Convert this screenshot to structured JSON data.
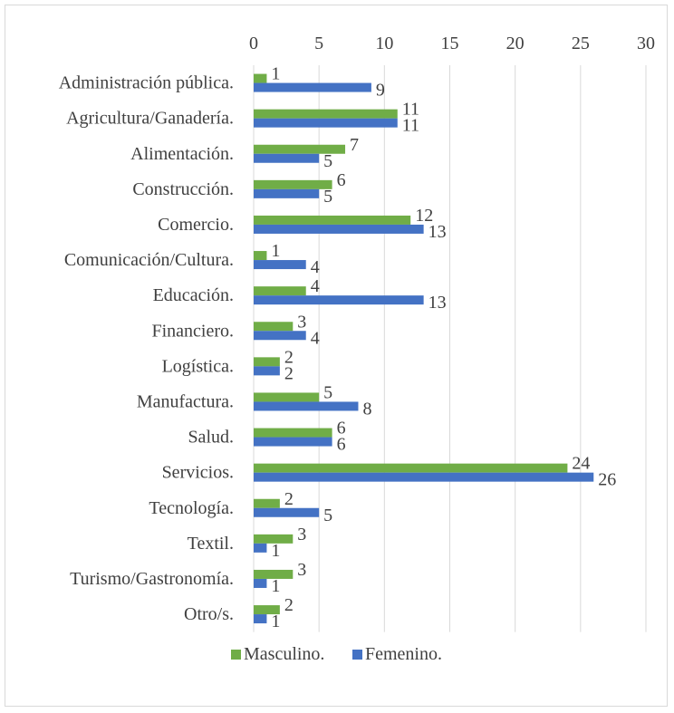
{
  "chart_data": {
    "type": "bar",
    "orientation": "horizontal",
    "categories": [
      "Administración pública.",
      "Agricultura/Ganadería.",
      "Alimentación.",
      "Construcción.",
      "Comercio.",
      "Comunicación/Cultura.",
      "Educación.",
      "Financiero.",
      "Logística.",
      "Manufactura.",
      "Salud.",
      "Servicios.",
      "Tecnología.",
      "Textil.",
      "Turismo/Gastronomía.",
      "Otro/s."
    ],
    "series": [
      {
        "name": "Masculino.",
        "color": "#70ad47",
        "values": [
          1,
          11,
          7,
          6,
          12,
          1,
          4,
          3,
          2,
          5,
          6,
          24,
          2,
          3,
          3,
          2
        ]
      },
      {
        "name": "Femenino.",
        "color": "#4472c4",
        "values": [
          9,
          11,
          5,
          5,
          13,
          4,
          13,
          4,
          2,
          8,
          6,
          26,
          5,
          1,
          1,
          1
        ]
      }
    ],
    "xlim": [
      0,
      30
    ],
    "xticks": [
      0,
      5,
      10,
      15,
      20,
      25,
      30
    ],
    "x_axis_position": "top",
    "grid": true,
    "data_labels": true,
    "legend": "bottom"
  }
}
